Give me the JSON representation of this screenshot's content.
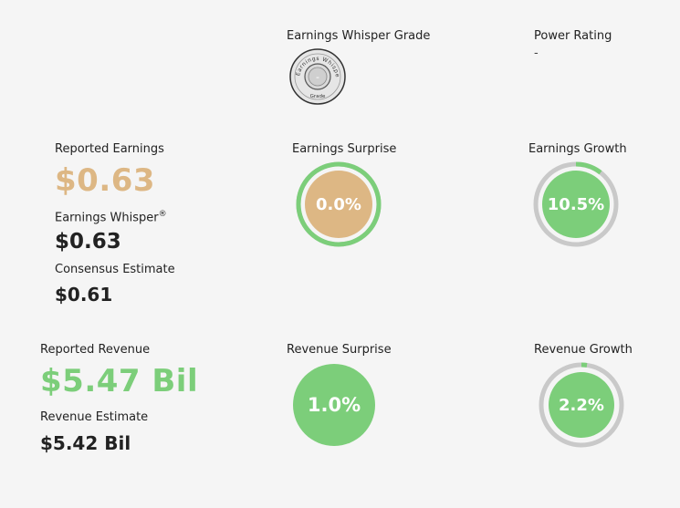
{
  "colors": {
    "green": "#7cce7a",
    "tan": "#ddb784",
    "ring_gray": "#c9c9c9",
    "dark_text": "#222222"
  },
  "header": {
    "grade_title": "Earnings Whisper Grade",
    "grade_value": "-",
    "grade_badge_top_text": "Earnings Whisper",
    "grade_badge_bottom_text": "Grade",
    "power_title": "Power Rating",
    "power_value": "-"
  },
  "earnings": {
    "reported_label": "Reported Earnings",
    "reported_value": "$0.63",
    "whisper_label": "Earnings Whisper",
    "whisper_mark": "®",
    "whisper_value": "$0.63",
    "consensus_label": "Consensus Estimate",
    "consensus_value": "$0.61",
    "surprise_label": "Earnings Surprise",
    "surprise_value": "0.0%",
    "surprise_ring_fraction": 1.0,
    "growth_label": "Earnings Growth",
    "growth_value": "10.5%",
    "growth_ring_fraction": 0.105
  },
  "revenue": {
    "reported_label": "Reported Revenue",
    "reported_value": "$5.47 Bil",
    "estimate_label": "Revenue Estimate",
    "estimate_value": "$5.42 Bil",
    "surprise_label": "Revenue Surprise",
    "surprise_value": "1.0%",
    "growth_label": "Revenue Growth",
    "growth_value": "2.2%",
    "growth_ring_fraction": 0.022
  }
}
